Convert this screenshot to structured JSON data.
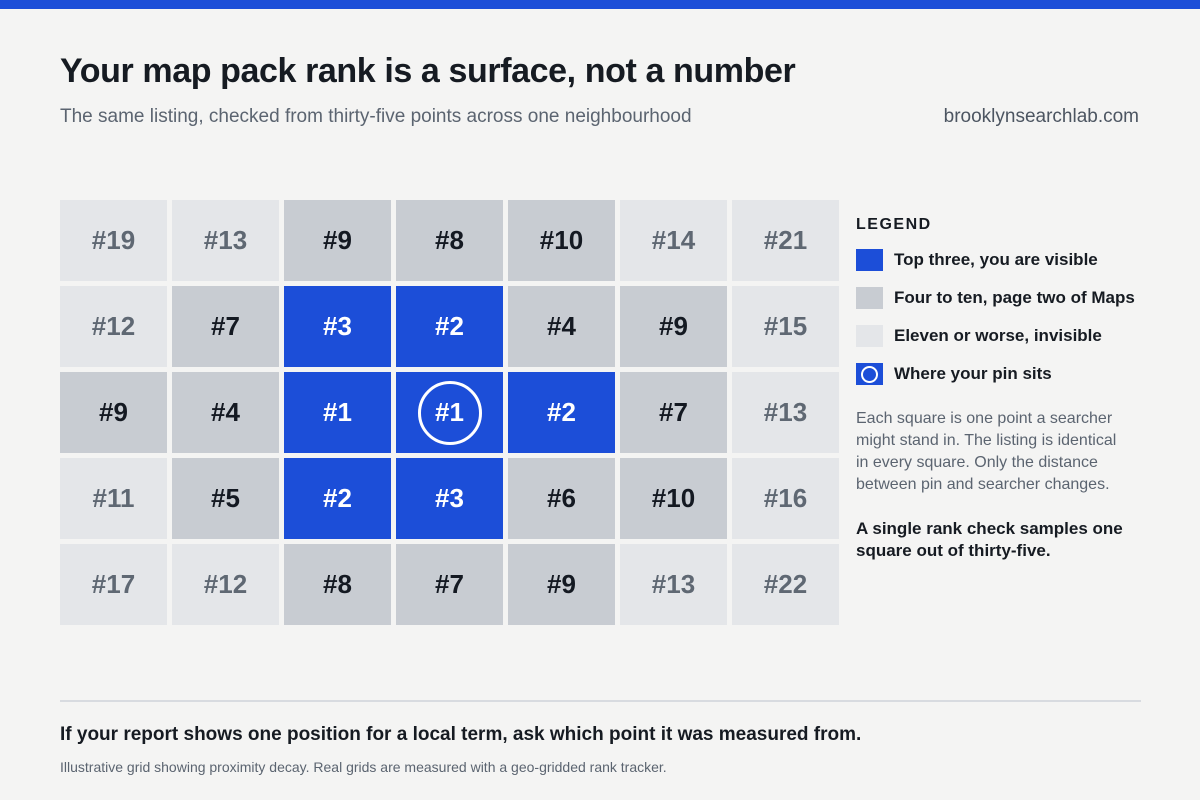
{
  "header": {
    "title": "Your map pack rank is a surface, not a number",
    "subtitle": "The same listing, checked from thirty-five points across one neighbourhood",
    "site": "brooklynsearchlab.com"
  },
  "chart_data": {
    "type": "heatmap",
    "rows": 5,
    "cols": 7,
    "value_prefix": "#",
    "values": [
      [
        19,
        13,
        9,
        8,
        10,
        14,
        21
      ],
      [
        12,
        7,
        3,
        2,
        4,
        9,
        15
      ],
      [
        9,
        4,
        1,
        1,
        2,
        7,
        13
      ],
      [
        11,
        5,
        2,
        3,
        6,
        10,
        16
      ],
      [
        17,
        12,
        8,
        7,
        9,
        13,
        22
      ]
    ],
    "pin": {
      "row": 2,
      "col": 3
    },
    "bands": [
      {
        "key": "top",
        "max": 3,
        "color": "#1c4ed8"
      },
      {
        "key": "mid",
        "max": 10,
        "color": "#c8ccd2"
      },
      {
        "key": "low",
        "max": 999,
        "color": "#e4e6e9"
      }
    ]
  },
  "legend": {
    "title": "LEGEND",
    "items": [
      {
        "key": "top",
        "label": "Top three, you are visible"
      },
      {
        "key": "mid",
        "label": "Four to ten, page two of Maps"
      },
      {
        "key": "low",
        "label": "Eleven or worse, invisible"
      },
      {
        "key": "pin",
        "label": "Where your pin sits"
      }
    ],
    "note": "Each square is one point a searcher might stand in. The listing is identical in every square. Only the distance between pin and searcher changes.",
    "callout": "A single rank check samples one square out of thirty-five."
  },
  "footer": {
    "main": "If your report shows one position for a local term, ask which point it was measured from.",
    "note": "Illustrative grid showing proximity decay. Real grids are measured with a geo-gridded rank tracker."
  }
}
